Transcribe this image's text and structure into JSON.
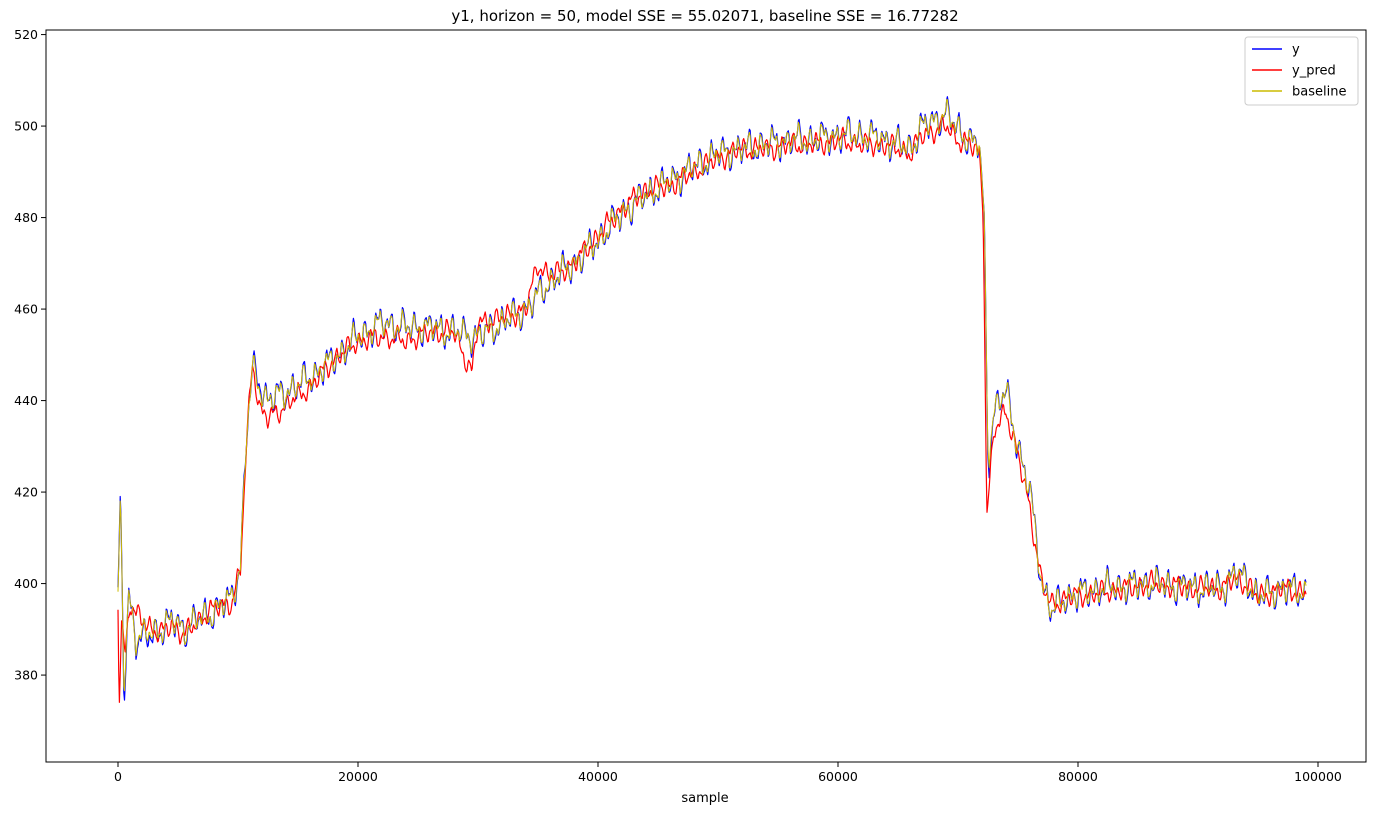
{
  "chart_data": {
    "type": "line",
    "title": "y1, horizon = 50, model SSE = 55.02071, baseline SSE = 16.77282",
    "xlabel": "sample",
    "ylabel": "",
    "xlim": [
      -6000,
      104000
    ],
    "ylim": [
      361,
      521
    ],
    "xticks": [
      0,
      20000,
      40000,
      60000,
      80000,
      100000
    ],
    "xtick_labels": [
      "0",
      "20000",
      "40000",
      "60000",
      "80000",
      "100000"
    ],
    "yticks": [
      380,
      400,
      420,
      440,
      460,
      480,
      500,
      520
    ],
    "ytick_labels": [
      "380",
      "400",
      "420",
      "440",
      "460",
      "480",
      "500",
      "520"
    ],
    "grid": false,
    "legend_position": "top-right",
    "legend": [
      "y",
      "y_pred",
      "baseline"
    ],
    "noise_amplitudes": {
      "y": 5,
      "y_pred": 3.2,
      "baseline": 4.2
    },
    "series": [
      {
        "name": "y",
        "color": "#0000ff",
        "x": [
          0,
          200,
          500,
          900,
          1500,
          2500,
          3500,
          4500,
          5500,
          6500,
          7500,
          8500,
          9500,
          10200,
          10700,
          11200,
          11800,
          12500,
          14000,
          16000,
          18000,
          20000,
          22000,
          24000,
          26000,
          28000,
          30000,
          32000,
          34000,
          36000,
          38000,
          40000,
          42000,
          44000,
          46000,
          48000,
          50000,
          52000,
          54000,
          56000,
          58000,
          60000,
          62000,
          64000,
          66000,
          67000,
          68000,
          69000,
          70000,
          71000,
          71800,
          72200,
          72500,
          73000,
          74000,
          75000,
          76000,
          77000,
          77800,
          79000,
          82000,
          86000,
          90000,
          92000,
          93000,
          94000,
          95000,
          97000,
          99000
        ],
        "values": [
          396,
          420,
          375,
          398,
          388,
          388,
          390,
          392,
          390,
          392,
          393,
          395,
          397,
          404,
          432,
          447,
          444,
          440,
          442,
          445,
          449,
          454,
          457,
          456,
          456,
          455,
          454,
          457,
          460,
          466,
          470,
          475,
          481,
          485,
          488,
          491,
          494,
          495,
          496,
          497,
          497,
          498,
          498,
          497,
          495,
          500,
          501,
          503,
          499,
          497,
          496,
          480,
          425,
          438,
          442,
          430,
          420,
          400,
          394,
          397,
          399,
          400,
          399,
          399,
          402,
          401,
          397,
          399,
          398
        ]
      },
      {
        "name": "y_pred",
        "color": "#ff0000",
        "x": [
          0,
          100,
          300,
          600,
          1000,
          1500,
          2500,
          3500,
          4500,
          5500,
          6500,
          7500,
          8500,
          9500,
          10200,
          10700,
          11200,
          11800,
          12500,
          14000,
          16000,
          18000,
          20000,
          22000,
          24000,
          26000,
          28000,
          29500,
          30000,
          32000,
          34000,
          35000,
          36000,
          38000,
          40000,
          42000,
          44000,
          46000,
          48000,
          50000,
          52000,
          54000,
          56000,
          58000,
          60000,
          62000,
          64000,
          66000,
          67000,
          68000,
          69000,
          70000,
          71000,
          71800,
          72100,
          72400,
          73000,
          74000,
          75000,
          76000,
          77000,
          77800,
          79000,
          82000,
          86000,
          90000,
          92000,
          93000,
          94000,
          95000,
          97000,
          99000
        ],
        "values": [
          395,
          375,
          392,
          385,
          396,
          393,
          391,
          389,
          391,
          389,
          391,
          394,
          395,
          396,
          403,
          430,
          449,
          438,
          436,
          439,
          443,
          449,
          453,
          454,
          453,
          455,
          455,
          446,
          457,
          458,
          460,
          470,
          467,
          470,
          476,
          482,
          486,
          487,
          490,
          493,
          495,
          495,
          496,
          496,
          497,
          496,
          496,
          494,
          498,
          499,
          500,
          497,
          496,
          494,
          480,
          415,
          433,
          438,
          428,
          416,
          400,
          395,
          397,
          398,
          400,
          399,
          399,
          401,
          400,
          397,
          399,
          398
        ]
      },
      {
        "name": "baseline",
        "color": "#ccbb00",
        "x": [
          0,
          200,
          500,
          900,
          1500,
          2500,
          3500,
          4500,
          5500,
          6500,
          7500,
          8500,
          9500,
          10200,
          10700,
          11200,
          11800,
          12500,
          14000,
          16000,
          18000,
          20000,
          22000,
          24000,
          26000,
          28000,
          30000,
          32000,
          34000,
          36000,
          38000,
          40000,
          42000,
          44000,
          46000,
          48000,
          50000,
          52000,
          54000,
          56000,
          58000,
          60000,
          62000,
          64000,
          66000,
          67000,
          68000,
          69000,
          70000,
          71000,
          71800,
          72200,
          72500,
          73000,
          74000,
          75000,
          76000,
          77000,
          77800,
          79000,
          82000,
          86000,
          90000,
          92000,
          93000,
          94000,
          95000,
          97000,
          99000
        ],
        "values": [
          396,
          419,
          377,
          398,
          388,
          389,
          390,
          392,
          390,
          392,
          393,
          395,
          397,
          404,
          432,
          447,
          443,
          440,
          442,
          445,
          449,
          454,
          457,
          456,
          456,
          455,
          454,
          457,
          460,
          466,
          470,
          475,
          481,
          485,
          488,
          491,
          494,
          495,
          496,
          497,
          497,
          498,
          498,
          497,
          495,
          500,
          501,
          503,
          499,
          497,
          496,
          480,
          427,
          438,
          442,
          430,
          420,
          400,
          394,
          397,
          399,
          400,
          399,
          399,
          402,
          401,
          397,
          399,
          398
        ]
      }
    ]
  }
}
